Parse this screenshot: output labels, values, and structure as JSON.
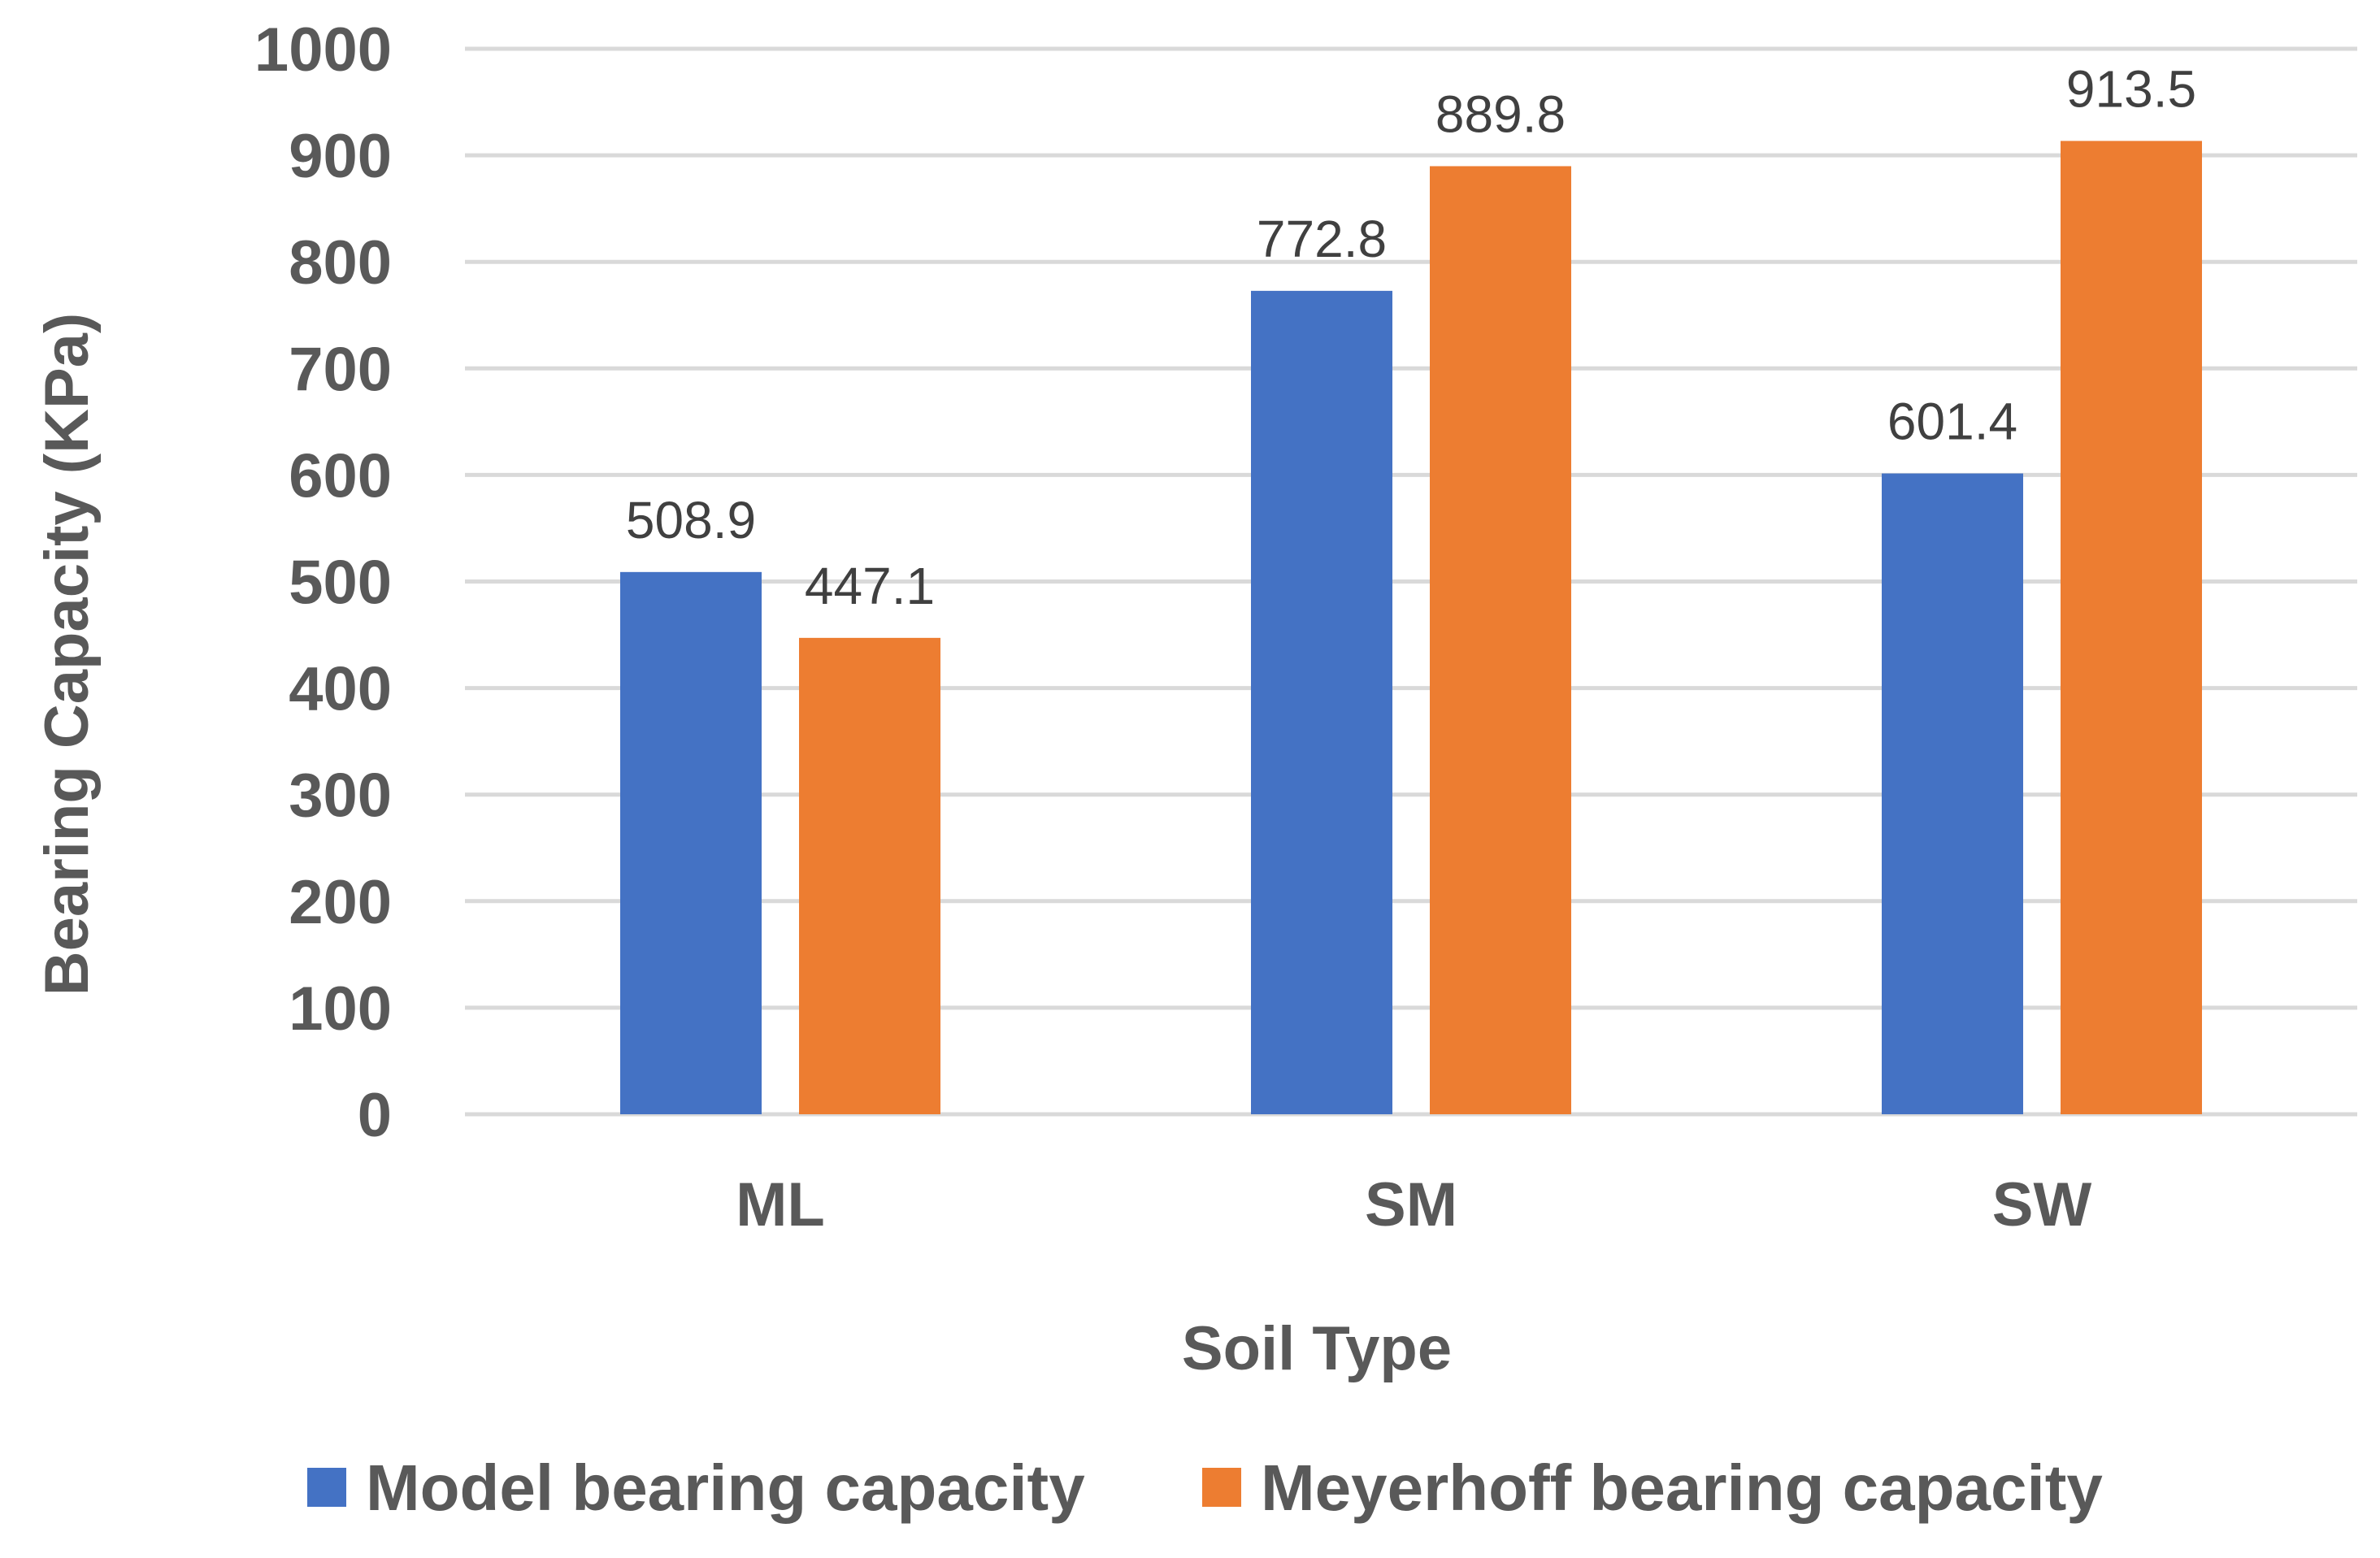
{
  "chart_data": {
    "type": "bar",
    "categories": [
      "ML",
      "SM",
      "SW"
    ],
    "series": [
      {
        "name": "Model bearing capacity",
        "color": "#4472C4",
        "values": [
          508.9,
          772.8,
          601.4
        ],
        "labels": [
          "508.9",
          "772.8",
          "601.4"
        ]
      },
      {
        "name": "Meyerhoff bearing capacity",
        "color": "#ED7D31",
        "values": [
          447.1,
          889.8,
          913.5
        ],
        "labels": [
          "447.1",
          "889.8",
          "913.5"
        ]
      }
    ],
    "xlabel": "Soil Type",
    "ylabel": "Bearing Capacity (KPa)",
    "ylim": [
      0,
      1000
    ],
    "yticks": [
      "0",
      "100",
      "200",
      "300",
      "400",
      "500",
      "600",
      "700",
      "800",
      "900",
      "1000"
    ],
    "grid": true,
    "legend": "bottom"
  }
}
